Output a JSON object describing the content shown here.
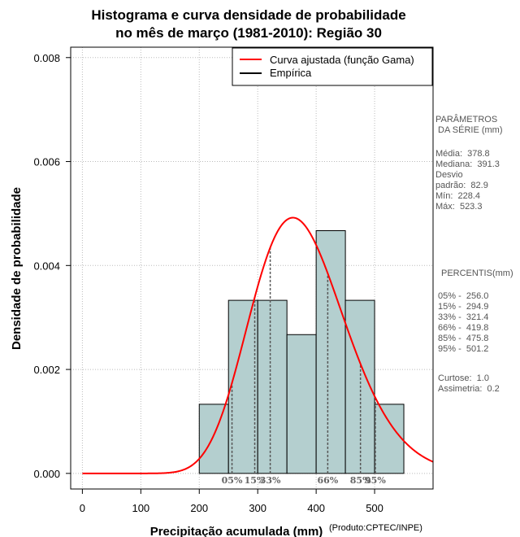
{
  "chart_data": {
    "type": "histogram",
    "title": [
      "Histograma e curva densidade de probabilidade",
      "no mês de março (1981-2010): Região 30"
    ],
    "xlabel": "Precipitação acumulada (mm)",
    "ylabel": "Densidade de probabilidade",
    "credit": "(Produto:CPTEC/INPE)",
    "xlim": [
      -20,
      600
    ],
    "ylim": [
      -0.0003,
      0.0082
    ],
    "x_ticks": [
      0,
      100,
      200,
      300,
      400,
      500
    ],
    "x_tick_labels": [
      "0",
      "100",
      "200",
      "300",
      "400",
      "500"
    ],
    "y_ticks": [
      0,
      0.002,
      0.004,
      0.006,
      0.008
    ],
    "y_tick_labels": [
      "0.000",
      "0.002",
      "0.004",
      "0.006",
      "0.008"
    ],
    "grid": true,
    "bins": [
      {
        "from": 200,
        "to": 250,
        "density": 0.00133
      },
      {
        "from": 250,
        "to": 300,
        "density": 0.00333
      },
      {
        "from": 300,
        "to": 350,
        "density": 0.00333
      },
      {
        "from": 350,
        "to": 400,
        "density": 0.00267
      },
      {
        "from": 400,
        "to": 450,
        "density": 0.00467
      },
      {
        "from": 450,
        "to": 500,
        "density": 0.00333
      },
      {
        "from": 500,
        "to": 550,
        "density": 0.00133
      }
    ],
    "fitted_curve": {
      "name": "Curva ajustada (função Gama)",
      "shape": 20.9,
      "scale": 18.1,
      "x_min": 0,
      "x_max": 600
    },
    "percentiles": [
      {
        "label": "05%",
        "value": 256.0
      },
      {
        "label": "15%",
        "value": 294.9
      },
      {
        "label": "33%",
        "value": 321.4
      },
      {
        "label": "66%",
        "value": 419.8
      },
      {
        "label": "85%",
        "value": 475.8
      },
      {
        "label": "95%",
        "value": 501.2
      }
    ],
    "legend": {
      "position": "top-right",
      "entries": [
        {
          "label": "Curva ajustada (função Gama)",
          "color": "#ff0000"
        },
        {
          "label": "Empírica",
          "color": "#000000"
        }
      ]
    },
    "colors": {
      "bar_fill": "#b4cfcf",
      "bar_stroke": "#000000",
      "curve": "#ff0000",
      "percentile_line": "#555555",
      "grid": "#bbbbbb"
    }
  },
  "side_panel": {
    "params_title": "PARÂMETROS\n DA SÉRIE (mm)",
    "params": [
      "Média:  378.8",
      "Mediana:  391.3",
      "Desvio",
      "padrão:  82.9",
      "Mín:  228.4",
      "Máx:  523.3"
    ],
    "percentis_title": "PERCENTIS(mm)",
    "percentis": [
      "05% -  256.0",
      "15% -  294.9",
      "33% -  321.4",
      "66% -  419.8",
      "85% -  475.8",
      "95% -  501.2"
    ],
    "stats": [
      "Curtose:  1.0",
      "Assimetria:  0.2"
    ]
  }
}
